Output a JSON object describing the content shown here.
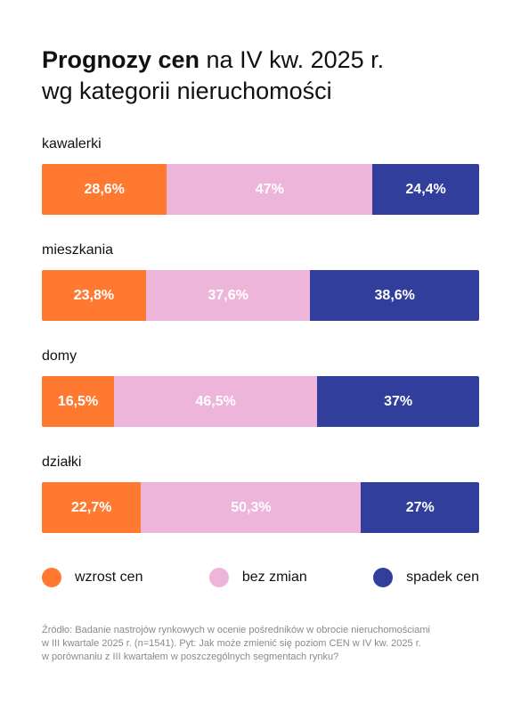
{
  "title": {
    "bold": "Prognozy cen",
    "regular_line1": " na IV kw. 2025 r.",
    "line2": "wg kategorii nieruchomości"
  },
  "colors": {
    "wzrost": "#ff7a30",
    "bez": "#eeb5da",
    "spadek": "#323e9b"
  },
  "chart_data": {
    "type": "bar",
    "orientation": "horizontal",
    "stacked": true,
    "percent_stacked": true,
    "categories": [
      "kawalerki",
      "mieszkania",
      "domy",
      "działki"
    ],
    "series": [
      {
        "name": "wzrost cen",
        "color": "#ff7a30",
        "values": [
          28.6,
          23.8,
          16.5,
          22.7
        ],
        "labels": [
          "28,6%",
          "23,8%",
          "16,5%",
          "22,7%"
        ]
      },
      {
        "name": "bez zmian",
        "color": "#eeb5da",
        "values": [
          47,
          37.6,
          46.5,
          50.3
        ],
        "labels": [
          "47%",
          "37,6%",
          "46,5%",
          "50,3%"
        ]
      },
      {
        "name": "spadek cen",
        "color": "#323e9b",
        "values": [
          24.4,
          38.6,
          37,
          27
        ],
        "labels": [
          "24,4%",
          "38,6%",
          "37%",
          "27%"
        ]
      }
    ],
    "legend": "bottom"
  },
  "source": {
    "line1": "Źródło: Badanie nastrojów rynkowych w ocenie pośredników w obrocie nieruchomościami",
    "line2": "w III kwartale 2025 r. (n=1541). Pyt: Jak może zmienić się poziom CEN w IV kw. 2025 r.",
    "line3": "w porównaniu z III kwartałem w poszczególnych segmentach rynku?"
  }
}
